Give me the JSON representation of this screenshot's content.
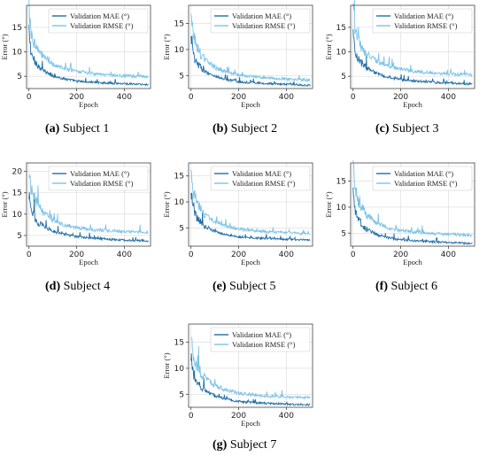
{
  "colors": {
    "mae": "#1f6ea6",
    "rmse": "#7cc3e6",
    "grid": "#d9d9d9",
    "axis": "#444444"
  },
  "chart_data": [
    {
      "type": "line",
      "caption_letter": "(a)",
      "caption_text": " Subject 1",
      "xlabel": "Epoch",
      "ylabel": "Error (°)",
      "xlim": [
        -10,
        510
      ],
      "ylim": [
        2.5,
        19.5
      ],
      "xticks": [
        0,
        200,
        400
      ],
      "yticks": [
        5,
        10,
        15
      ],
      "grid": true,
      "legend_position": "upper-right",
      "series": [
        {
          "name": "Validation MAE (°)",
          "x": [
            0,
            10,
            25,
            50,
            100,
            150,
            200,
            300,
            400,
            500
          ],
          "y": [
            14,
            9.5,
            8,
            6.5,
            5,
            4.5,
            4,
            3.7,
            3.5,
            3.3
          ]
        },
        {
          "name": "Validation RMSE (°)",
          "x": [
            0,
            10,
            25,
            50,
            100,
            150,
            200,
            300,
            400,
            500
          ],
          "y": [
            19,
            13.5,
            11.5,
            9.5,
            7.5,
            6.5,
            6,
            5.4,
            5.1,
            4.9
          ]
        }
      ]
    },
    {
      "type": "line",
      "caption_letter": "(b)",
      "caption_text": " Subject 2",
      "xlabel": "Epoch",
      "ylabel": "Error (°)",
      "xlim": [
        -10,
        510
      ],
      "ylim": [
        2.5,
        18.5
      ],
      "xticks": [
        0,
        200,
        400
      ],
      "yticks": [
        5,
        10,
        15
      ],
      "grid": true,
      "legend_position": "upper-right",
      "series": [
        {
          "name": "Validation MAE (°)",
          "x": [
            0,
            10,
            25,
            50,
            100,
            150,
            200,
            300,
            400,
            500
          ],
          "y": [
            13,
            9,
            7.5,
            6,
            4.8,
            4.2,
            3.8,
            3.5,
            3.3,
            3.1
          ]
        },
        {
          "name": "Validation RMSE (°)",
          "x": [
            0,
            10,
            25,
            50,
            100,
            150,
            200,
            300,
            400,
            500
          ],
          "y": [
            17.5,
            12.5,
            10.5,
            8.5,
            6.5,
            5.6,
            5.1,
            4.6,
            4.3,
            4.1
          ]
        }
      ]
    },
    {
      "type": "line",
      "caption_letter": "(c)",
      "caption_text": " Subject 3",
      "xlabel": "Epoch",
      "ylabel": "Error (°)",
      "xlim": [
        -10,
        510
      ],
      "ylim": [
        2.5,
        19.5
      ],
      "xticks": [
        0,
        200,
        400
      ],
      "yticks": [
        5,
        10,
        15
      ],
      "grid": true,
      "legend_position": "upper-right",
      "series": [
        {
          "name": "Validation MAE (°)",
          "x": [
            0,
            10,
            25,
            50,
            100,
            150,
            200,
            300,
            400,
            500
          ],
          "y": [
            14,
            10,
            8.5,
            7,
            5.5,
            4.8,
            4.3,
            3.9,
            3.6,
            3.4
          ]
        },
        {
          "name": "Validation RMSE (°)",
          "x": [
            0,
            10,
            25,
            50,
            100,
            150,
            200,
            300,
            400,
            500
          ],
          "y": [
            19,
            14,
            12,
            10,
            8,
            7,
            6.4,
            5.8,
            5.5,
            5.3
          ]
        }
      ]
    },
    {
      "type": "line",
      "caption_letter": "(d)",
      "caption_text": " Subject 4",
      "xlabel": "Epoch",
      "ylabel": "Error (°)",
      "xlim": [
        -10,
        510
      ],
      "ylim": [
        2.5,
        22
      ],
      "xticks": [
        0,
        200,
        400
      ],
      "yticks": [
        5,
        10,
        15,
        20
      ],
      "grid": true,
      "legend_position": "upper-right",
      "series": [
        {
          "name": "Validation MAE (°)",
          "x": [
            0,
            10,
            25,
            50,
            100,
            150,
            200,
            300,
            400,
            500
          ],
          "y": [
            15,
            11,
            9,
            7.5,
            6,
            5.2,
            4.7,
            4.2,
            3.9,
            3.7
          ]
        },
        {
          "name": "Validation RMSE (°)",
          "x": [
            0,
            10,
            25,
            50,
            100,
            150,
            200,
            300,
            400,
            500
          ],
          "y": [
            21,
            16,
            13.5,
            11,
            8.5,
            7.5,
            6.8,
            6.2,
            5.9,
            5.7
          ]
        }
      ]
    },
    {
      "type": "line",
      "caption_letter": "(e)",
      "caption_text": " Subject 5",
      "xlabel": "Epoch",
      "ylabel": "Error (°)",
      "xlim": [
        -10,
        510
      ],
      "ylim": [
        1.5,
        17.5
      ],
      "xticks": [
        0,
        200,
        400
      ],
      "yticks": [
        5,
        10,
        15
      ],
      "grid": true,
      "legend_position": "upper-right",
      "series": [
        {
          "name": "Validation MAE (°)",
          "x": [
            0,
            10,
            25,
            50,
            100,
            150,
            200,
            300,
            400,
            500
          ],
          "y": [
            12,
            8.5,
            7,
            5.5,
            4.3,
            3.7,
            3.3,
            3,
            2.8,
            2.7
          ]
        },
        {
          "name": "Validation RMSE (°)",
          "x": [
            0,
            10,
            25,
            50,
            100,
            150,
            200,
            300,
            400,
            500
          ],
          "y": [
            16.5,
            12,
            10,
            8,
            6.2,
            5.3,
            4.8,
            4.3,
            4.1,
            3.9
          ]
        }
      ]
    },
    {
      "type": "line",
      "caption_letter": "(f)",
      "caption_text": " Subject 6",
      "xlabel": "Epoch",
      "ylabel": "Error (°)",
      "xlim": [
        -10,
        510
      ],
      "ylim": [
        2.5,
        18.5
      ],
      "xticks": [
        0,
        200,
        400
      ],
      "yticks": [
        5,
        10,
        15
      ],
      "grid": true,
      "legend_position": "upper-right",
      "series": [
        {
          "name": "Validation MAE (°)",
          "x": [
            0,
            10,
            25,
            50,
            100,
            150,
            200,
            300,
            400,
            500
          ],
          "y": [
            13,
            9,
            7.5,
            6,
            4.7,
            4.1,
            3.7,
            3.4,
            3.2,
            3.0
          ]
        },
        {
          "name": "Validation RMSE (°)",
          "x": [
            0,
            10,
            25,
            50,
            100,
            150,
            200,
            300,
            400,
            500
          ],
          "y": [
            18,
            13,
            11,
            9,
            7,
            6,
            5.5,
            5.0,
            4.8,
            4.6
          ]
        }
      ]
    },
    {
      "type": "line",
      "caption_letter": "(g)",
      "caption_text": " Subject 7",
      "xlabel": "Epoch",
      "ylabel": "Error (°)",
      "xlim": [
        -10,
        510
      ],
      "ylim": [
        2.5,
        18.5
      ],
      "xticks": [
        0,
        200,
        400
      ],
      "yticks": [
        5,
        10,
        15
      ],
      "grid": true,
      "legend_position": "upper-right",
      "series": [
        {
          "name": "Validation MAE (°)",
          "x": [
            0,
            10,
            25,
            50,
            100,
            150,
            200,
            300,
            400,
            500
          ],
          "y": [
            12.5,
            9,
            7.5,
            6,
            4.7,
            4.1,
            3.6,
            3.3,
            3.1,
            3.0
          ]
        },
        {
          "name": "Validation RMSE (°)",
          "x": [
            0,
            10,
            25,
            50,
            100,
            150,
            200,
            300,
            400,
            500
          ],
          "y": [
            17.5,
            12.5,
            10.5,
            8.5,
            6.7,
            5.8,
            5.2,
            4.7,
            4.5,
            4.3
          ]
        }
      ]
    }
  ]
}
